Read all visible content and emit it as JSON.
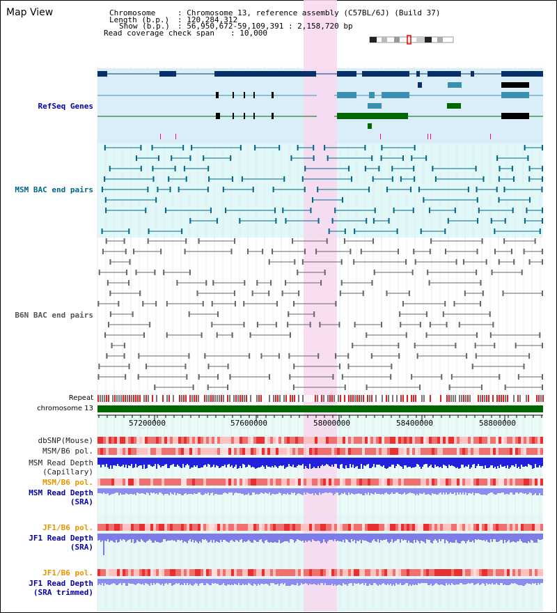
{
  "title": "Map View",
  "info": {
    "chromosome_label": "Chromosome",
    "chromosome_value": ": Chromosome 13, reference assembly (C57BL/6J) (Build 37)",
    "length_label": "Length (b.p.)",
    "length_value": ": 120,284,312",
    "show_label": "Show (b.p.)",
    "show_value": ": 56,950,672-59,109,391 : 2,158,720 bp",
    "coverage_label": "Read coverage check span",
    "coverage_value": ": 10,000"
  },
  "tracks": {
    "refseq": "RefSeq Genes",
    "msm_bac": "MSM BAC end pairs",
    "b6n_bac": "B6N BAC end pairs",
    "repeat": "Repeat",
    "chromosome": "chromosome 13",
    "dbsnp": "dbSNP(Mouse)",
    "msm_b6_pol_1": "MSM/B6 pol.",
    "msm_depth_capillary": "MSM Read Depth\n(Capillary)",
    "msm_b6_pol_2": "MSM/B6 pol.",
    "msm_depth_sra": "MSM Read Depth\n(SRA)",
    "jf1_b6_pol_1": "JF1/B6 pol.",
    "jf1_depth_sra": "JF1 Read Depth\n(SRA)",
    "jf1_b6_pol_2": "JF1/B6 pol.",
    "jf1_depth_trimmed": "JF1 Read Depth\n(SRA trimmed)"
  },
  "axis": {
    "ticks": [
      "57200000",
      "57600000",
      "58000000",
      "58400000",
      "58800000"
    ]
  },
  "colors": {
    "refseq_label": "#0000aa",
    "msm_bac_label": "#006688",
    "b6n_label": "#555555",
    "orange_label": "#e69500",
    "blue_label": "#0000aa",
    "highlight": "#f8d8f0",
    "refseq_bg": "#d8eef8",
    "msm_bg": "#e0f8f8"
  }
}
